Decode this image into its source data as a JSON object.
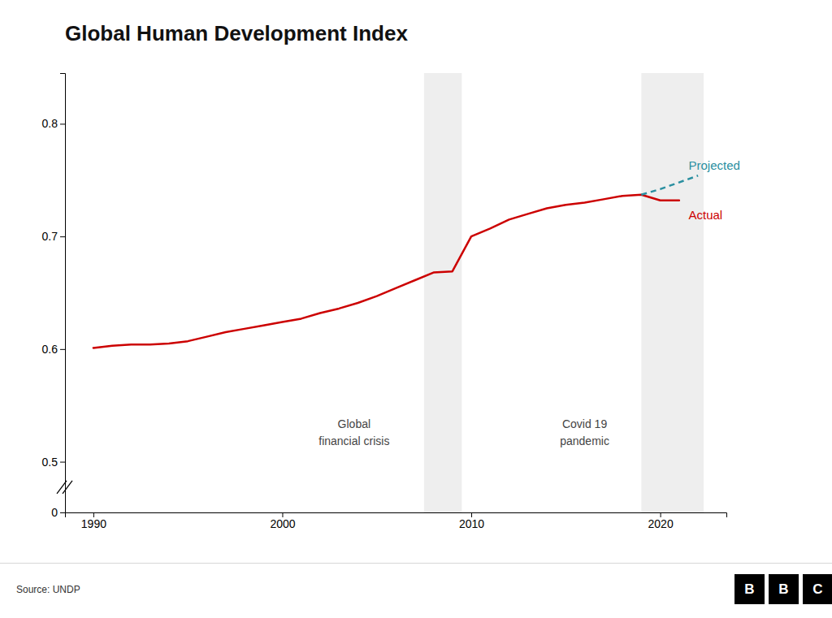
{
  "chart_data": {
    "type": "line",
    "title": "Global Human Development Index",
    "source": "Source: UNDP",
    "logo": [
      "B",
      "B",
      "C"
    ],
    "series": [
      {
        "name": "Actual",
        "color": "#cc0000",
        "line_style": "solid",
        "label_at": {
          "x": 2021.5,
          "y": 0.718
        },
        "x": [
          1990,
          1991,
          1992,
          1993,
          1994,
          1995,
          1996,
          1997,
          1998,
          1999,
          2000,
          2001,
          2002,
          2003,
          2004,
          2005,
          2006,
          2007,
          2008,
          2009,
          2010,
          2011,
          2012,
          2013,
          2014,
          2015,
          2016,
          2017,
          2018,
          2019,
          2020,
          2021
        ],
        "values": [
          0.601,
          0.603,
          0.604,
          0.604,
          0.605,
          0.607,
          0.611,
          0.615,
          0.618,
          0.621,
          0.624,
          0.627,
          0.632,
          0.636,
          0.641,
          0.647,
          0.654,
          0.661,
          0.668,
          0.669,
          0.7,
          0.707,
          0.715,
          0.72,
          0.725,
          0.728,
          0.73,
          0.733,
          0.736,
          0.737,
          0.732,
          0.732
        ]
      },
      {
        "name": "Projected",
        "color": "#2a8fa0",
        "line_style": "dashed",
        "label_at": {
          "x": 2021.5,
          "y": 0.762
        },
        "x": [
          2019,
          2020,
          2021,
          2022
        ],
        "values": [
          0.737,
          0.742,
          0.748,
          0.754
        ]
      }
    ],
    "shading": [
      {
        "x_start": 2007.5,
        "x_end": 2009.5
      },
      {
        "x_start": 2019.0,
        "x_end": 2022.3
      }
    ],
    "annotations": [
      {
        "text": "Global\nfinancial crisis",
        "x": 2003.8,
        "y": 0.525
      },
      {
        "text": "Covid 19\npandemic",
        "x": 2016.0,
        "y": 0.525
      }
    ],
    "xlim": [
      1988.5,
      2023.5
    ],
    "xticks": [
      1990,
      2000,
      2010,
      2020
    ],
    "ylim": [
      0.455,
      0.845
    ],
    "yticks": [
      {
        "value": 0.455,
        "label": "0"
      },
      0.5,
      0.6,
      0.7,
      0.8
    ],
    "grid": false
  }
}
